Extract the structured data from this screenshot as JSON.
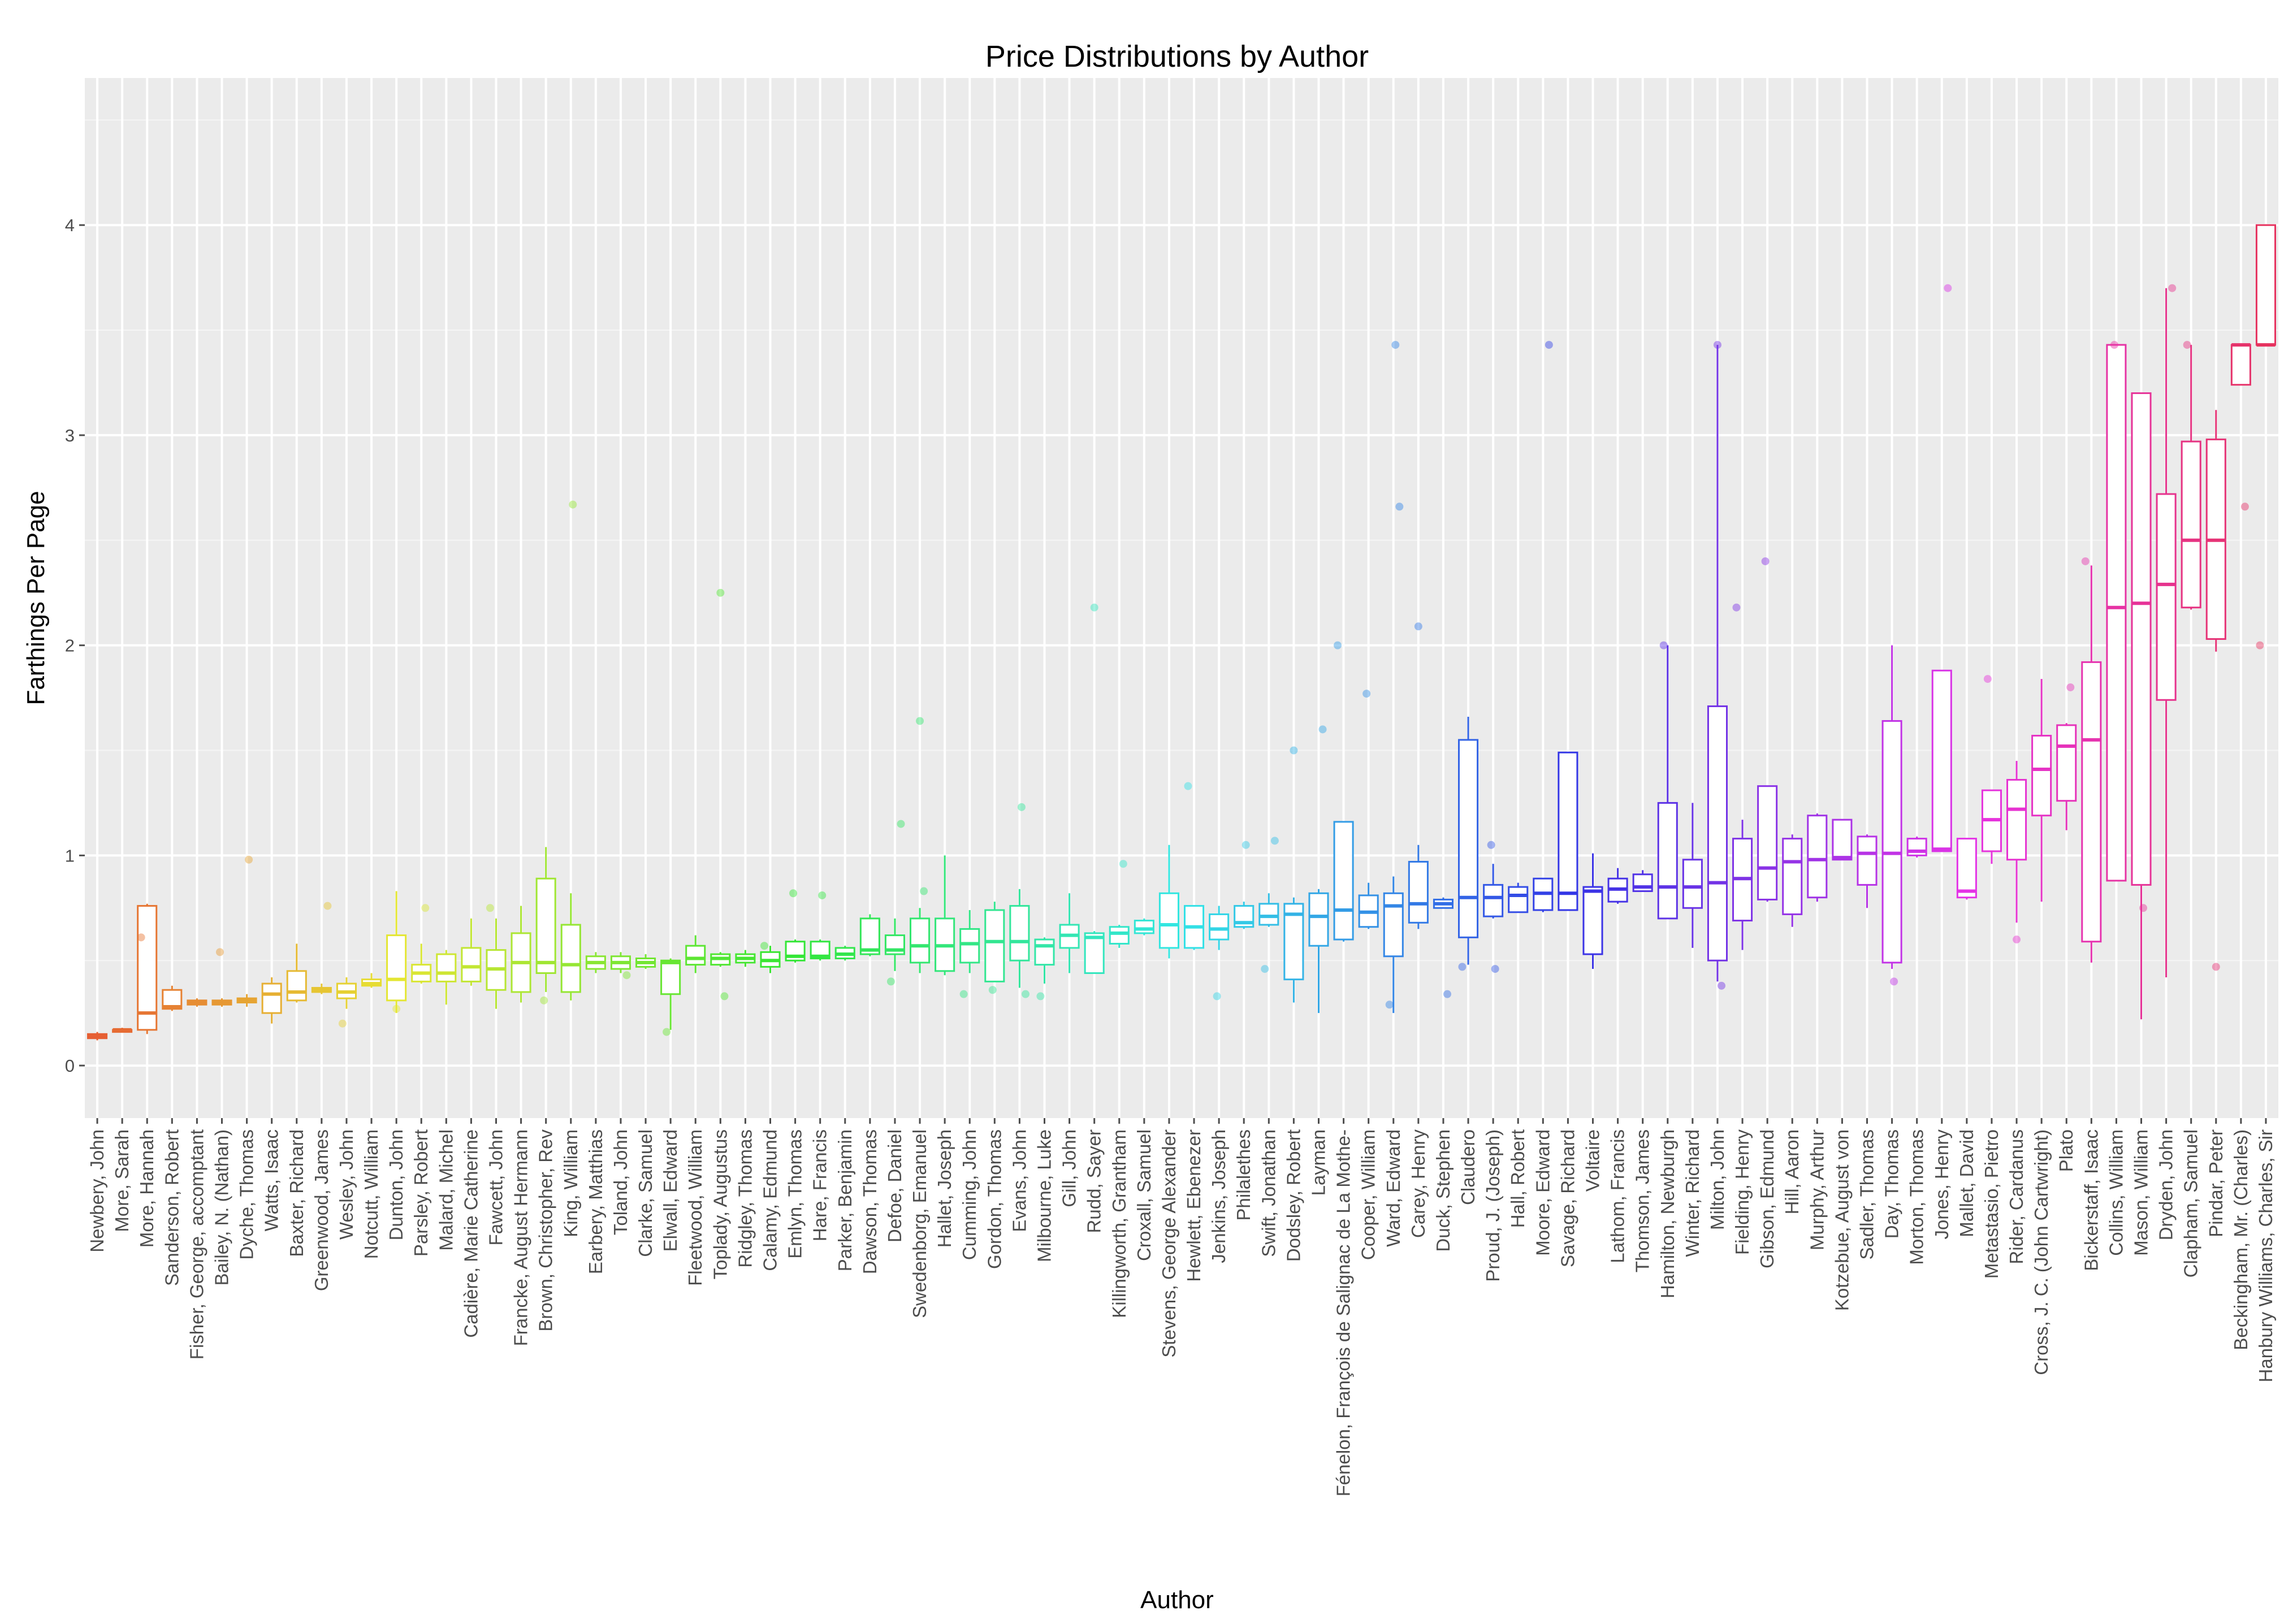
{
  "chart_data": {
    "type": "box",
    "title": "Price Distributions by Author",
    "xlabel": "Author",
    "ylabel": "Farthings Per Page",
    "ylim": [
      -0.25,
      4.7
    ],
    "yticks": [
      0,
      1,
      2,
      3,
      4
    ],
    "grid": true,
    "legend": "none",
    "categories": [
      "Newbery, John",
      "More, Sarah",
      "More, Hannah",
      "Sanderson, Robert",
      "Fisher, George, accomptant",
      "Bailey, N. (Nathan)",
      "Dyche, Thomas",
      "Watts, Isaac",
      "Baxter, Richard",
      "Greenwood, James",
      "Wesley, John",
      "Notcutt, William",
      "Dunton, John",
      "Parsley, Robert",
      "Malard, Michel",
      "Cadière, Marie Catherine",
      "Fawcett, John",
      "Francke, August Hermann",
      "Brown, Christopher, Rev",
      "King, William",
      "Earbery, Matthias",
      "Toland, John",
      "Clarke, Samuel",
      "Elwall, Edward",
      "Fleetwood, William",
      "Toplady, Augustus",
      "Ridgley, Thomas",
      "Calamy, Edmund",
      "Emlyn, Thomas",
      "Hare, Francis",
      "Parker, Benjamin",
      "Dawson, Thomas",
      "Defoe, Daniel",
      "Swedenborg, Emanuel",
      "Hallet, Joseph",
      "Cumming, John",
      "Gordon, Thomas",
      "Evans, John",
      "Milbourne, Luke",
      "Gill, John",
      "Rudd, Sayer",
      "Killingworth, Grantham",
      "Croxall, Samuel",
      "Stevens, George Alexander",
      "Hewlett, Ebenezer",
      "Jenkins, Joseph",
      "Philalethes",
      "Swift, Jonathan",
      "Dodsley, Robert",
      "Layman",
      "Fénelon, François de Salignac de La Mothe-",
      "Cooper, William",
      "Ward, Edward",
      "Carey, Henry",
      "Duck, Stephen",
      "Claudero",
      "Proud, J. (Joseph)",
      "Hall, Robert",
      "Moore, Edward",
      "Savage, Richard",
      "Voltaire",
      "Lathom, Francis",
      "Thomson, James",
      "Hamilton, Newburgh",
      "Winter, Richard",
      "Milton, John",
      "Fielding, Henry",
      "Gibson, Edmund",
      "Hill, Aaron",
      "Murphy, Arthur",
      "Kotzebue, August von",
      "Sadler, Thomas",
      "Day, Thomas",
      "Morton, Thomas",
      "Jones, Henry",
      "Mallet, David",
      "Metastasio, Pietro",
      "Rider, Cardanus",
      "Cross, J. C. (John Cartwright)",
      "Plato",
      "Bickerstaff, Isaac",
      "Collins, William",
      "Mason, William",
      "Dryden, John",
      "Clapham, Samuel",
      "Pindar, Peter",
      "Beckingham, Mr. (Charles)",
      "Hanbury Williams, Charles, Sir"
    ],
    "boxes": [
      [
        0.12,
        0.13,
        0.14,
        0.15,
        0.16
      ],
      [
        0.16,
        0.16,
        0.17,
        0.17,
        0.18
      ],
      [
        0.15,
        0.17,
        0.25,
        0.76,
        0.77
      ],
      [
        0.26,
        0.27,
        0.28,
        0.36,
        0.38
      ],
      [
        0.28,
        0.29,
        0.3,
        0.31,
        0.32
      ],
      [
        0.28,
        0.29,
        0.3,
        0.31,
        0.32
      ],
      [
        0.28,
        0.3,
        0.31,
        0.32,
        0.34
      ],
      [
        0.2,
        0.25,
        0.34,
        0.39,
        0.42
      ],
      [
        0.3,
        0.31,
        0.35,
        0.45,
        0.58
      ],
      [
        0.34,
        0.35,
        0.36,
        0.37,
        0.39
      ],
      [
        0.27,
        0.32,
        0.35,
        0.39,
        0.42
      ],
      [
        0.37,
        0.38,
        0.39,
        0.41,
        0.44
      ],
      [
        0.25,
        0.31,
        0.41,
        0.62,
        0.83
      ],
      [
        0.39,
        0.4,
        0.44,
        0.48,
        0.58
      ],
      [
        0.29,
        0.4,
        0.44,
        0.53,
        0.55
      ],
      [
        0.38,
        0.4,
        0.47,
        0.56,
        0.7
      ],
      [
        0.27,
        0.36,
        0.46,
        0.55,
        0.7
      ],
      [
        0.3,
        0.35,
        0.49,
        0.63,
        0.76
      ],
      [
        0.35,
        0.44,
        0.49,
        0.89,
        1.04
      ],
      [
        0.31,
        0.35,
        0.48,
        0.67,
        0.82
      ],
      [
        0.44,
        0.46,
        0.49,
        0.52,
        0.54
      ],
      [
        0.44,
        0.46,
        0.49,
        0.52,
        0.54
      ],
      [
        0.46,
        0.47,
        0.49,
        0.51,
        0.53
      ],
      [
        0.17,
        0.34,
        0.49,
        0.5,
        0.51
      ],
      [
        0.44,
        0.48,
        0.51,
        0.57,
        0.62
      ],
      [
        0.47,
        0.48,
        0.51,
        0.53,
        0.54
      ],
      [
        0.47,
        0.49,
        0.51,
        0.53,
        0.55
      ],
      [
        0.44,
        0.47,
        0.5,
        0.54,
        0.57
      ],
      [
        0.49,
        0.5,
        0.52,
        0.59,
        0.6
      ],
      [
        0.5,
        0.51,
        0.52,
        0.59,
        0.6
      ],
      [
        0.5,
        0.51,
        0.53,
        0.56,
        0.57
      ],
      [
        0.52,
        0.53,
        0.55,
        0.7,
        0.72
      ],
      [
        0.45,
        0.53,
        0.55,
        0.62,
        0.7
      ],
      [
        0.44,
        0.49,
        0.57,
        0.7,
        0.75
      ],
      [
        0.43,
        0.45,
        0.57,
        0.7,
        1.0
      ],
      [
        0.44,
        0.49,
        0.58,
        0.65,
        0.74
      ],
      [
        0.4,
        0.4,
        0.59,
        0.74,
        0.78
      ],
      [
        0.37,
        0.5,
        0.59,
        0.76,
        0.84
      ],
      [
        0.39,
        0.48,
        0.57,
        0.6,
        0.61
      ],
      [
        0.44,
        0.56,
        0.62,
        0.67,
        0.82
      ],
      [
        0.44,
        0.44,
        0.61,
        0.63,
        0.64
      ],
      [
        0.56,
        0.58,
        0.63,
        0.66,
        0.67
      ],
      [
        0.62,
        0.63,
        0.65,
        0.69,
        0.7
      ],
      [
        0.51,
        0.56,
        0.67,
        0.82,
        1.05
      ],
      [
        0.55,
        0.56,
        0.66,
        0.76,
        0.76
      ],
      [
        0.55,
        0.6,
        0.65,
        0.72,
        0.76
      ],
      [
        0.65,
        0.66,
        0.68,
        0.76,
        0.78
      ],
      [
        0.66,
        0.67,
        0.71,
        0.77,
        0.82
      ],
      [
        0.3,
        0.41,
        0.72,
        0.77,
        0.8
      ],
      [
        0.25,
        0.57,
        0.71,
        0.82,
        0.84
      ],
      [
        0.59,
        0.6,
        0.74,
        1.16,
        1.16
      ],
      [
        0.65,
        0.66,
        0.73,
        0.81,
        0.87
      ],
      [
        0.25,
        0.52,
        0.76,
        0.82,
        0.9
      ],
      [
        0.65,
        0.68,
        0.77,
        0.97,
        1.05
      ],
      [
        0.75,
        0.75,
        0.77,
        0.79,
        0.8
      ],
      [
        0.48,
        0.61,
        0.8,
        1.55,
        1.66
      ],
      [
        0.7,
        0.71,
        0.8,
        0.86,
        0.96
      ],
      [
        0.73,
        0.73,
        0.81,
        0.85,
        0.87
      ],
      [
        0.73,
        0.74,
        0.82,
        0.89,
        0.89
      ],
      [
        0.74,
        0.74,
        0.82,
        1.49,
        1.49
      ],
      [
        0.46,
        0.53,
        0.83,
        0.85,
        1.01
      ],
      [
        0.77,
        0.78,
        0.84,
        0.89,
        0.94
      ],
      [
        0.83,
        0.83,
        0.85,
        0.91,
        0.93
      ],
      [
        0.7,
        0.7,
        0.85,
        1.25,
        2.0
      ],
      [
        0.56,
        0.75,
        0.85,
        0.98,
        1.25
      ],
      [
        0.4,
        0.5,
        0.87,
        1.71,
        3.43
      ],
      [
        0.55,
        0.69,
        0.89,
        1.08,
        1.17
      ],
      [
        0.78,
        0.79,
        0.94,
        1.33,
        1.33
      ],
      [
        0.66,
        0.72,
        0.97,
        1.08,
        1.1
      ],
      [
        0.78,
        0.8,
        0.98,
        1.19,
        1.2
      ],
      [
        0.98,
        0.98,
        0.99,
        1.17,
        1.17
      ],
      [
        0.75,
        0.86,
        1.01,
        1.09,
        1.1
      ],
      [
        0.46,
        0.49,
        1.01,
        1.64,
        2.0
      ],
      [
        0.99,
        1.0,
        1.02,
        1.08,
        1.09
      ],
      [
        1.02,
        1.02,
        1.03,
        1.88,
        1.88
      ],
      [
        0.79,
        0.8,
        0.83,
        1.08,
        1.08
      ],
      [
        0.96,
        1.02,
        1.17,
        1.31,
        1.31
      ],
      [
        0.68,
        0.98,
        1.22,
        1.36,
        1.45
      ],
      [
        0.78,
        1.19,
        1.41,
        1.57,
        1.84
      ],
      [
        1.12,
        1.26,
        1.52,
        1.62,
        1.63
      ],
      [
        0.49,
        0.59,
        1.55,
        1.92,
        2.38
      ],
      [
        0.88,
        0.88,
        2.18,
        3.43,
        3.43
      ],
      [
        0.22,
        0.86,
        2.2,
        3.2,
        3.2
      ],
      [
        0.42,
        1.74,
        2.29,
        2.72,
        3.7
      ],
      [
        2.17,
        2.18,
        2.5,
        2.97,
        3.43
      ],
      [
        1.97,
        2.03,
        2.5,
        2.98,
        3.12
      ],
      [
        3.24,
        3.24,
        3.43,
        3.43,
        3.43
      ],
      [
        3.43,
        3.43,
        3.43,
        4.0,
        4.0
      ]
    ],
    "outliers": [
      [
        2,
        0.61
      ],
      [
        5,
        0.54
      ],
      [
        6,
        0.98
      ],
      [
        9,
        0.76
      ],
      [
        10,
        0.2
      ],
      [
        12,
        0.27
      ],
      [
        13,
        0.75
      ],
      [
        16,
        0.75
      ],
      [
        18,
        0.31
      ],
      [
        19,
        2.67
      ],
      [
        21,
        0.43
      ],
      [
        23,
        0.16
      ],
      [
        25,
        2.25
      ],
      [
        25,
        0.33
      ],
      [
        27,
        0.57
      ],
      [
        28,
        0.82
      ],
      [
        29,
        0.81
      ],
      [
        32,
        1.15
      ],
      [
        32,
        0.4
      ],
      [
        33,
        1.64
      ],
      [
        33,
        0.83
      ],
      [
        35,
        0.34
      ],
      [
        36,
        0.36
      ],
      [
        37,
        1.23
      ],
      [
        37,
        0.34
      ],
      [
        38,
        0.33
      ],
      [
        40,
        2.18
      ],
      [
        41,
        0.96
      ],
      [
        44,
        1.33
      ],
      [
        45,
        0.33
      ],
      [
        46,
        1.05
      ],
      [
        47,
        1.07
      ],
      [
        47,
        0.46
      ],
      [
        48,
        1.5
      ],
      [
        49,
        1.6
      ],
      [
        50,
        2.0
      ],
      [
        51,
        1.77
      ],
      [
        52,
        3.43
      ],
      [
        52,
        2.66
      ],
      [
        52,
        0.29
      ],
      [
        53,
        2.09
      ],
      [
        54,
        0.34
      ],
      [
        55,
        0.47
      ],
      [
        56,
        1.05
      ],
      [
        56,
        0.46
      ],
      [
        58,
        3.43
      ],
      [
        63,
        2.0
      ],
      [
        65,
        3.43
      ],
      [
        65,
        0.38
      ],
      [
        66,
        2.18
      ],
      [
        67,
        2.4
      ],
      [
        72,
        0.4
      ],
      [
        74,
        3.7
      ],
      [
        76,
        1.84
      ],
      [
        77,
        0.6
      ],
      [
        79,
        1.8
      ],
      [
        80,
        2.4
      ],
      [
        81,
        3.43
      ],
      [
        82,
        0.75
      ],
      [
        83,
        3.7
      ],
      [
        84,
        3.43
      ],
      [
        85,
        0.47
      ],
      [
        86,
        2.66
      ],
      [
        87,
        2.0
      ]
    ]
  }
}
